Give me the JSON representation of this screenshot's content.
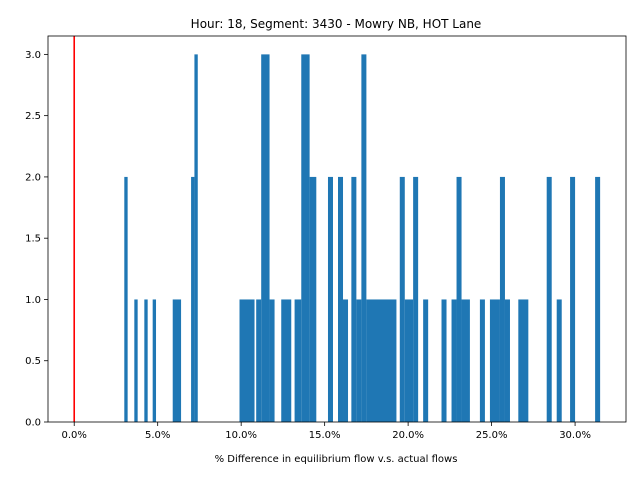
{
  "chart_data": {
    "type": "bar",
    "title": "Hour: 18, Segment: 3430 - Mowry NB, HOT Lane",
    "xlabel": "% Difference in equilibrium flow v.s. actual flows",
    "ylabel": "",
    "xlim": [
      -0.0157,
      0.3305
    ],
    "ylim": [
      0,
      3.15
    ],
    "x_ticks": [
      0.0,
      0.05,
      0.1,
      0.15,
      0.2,
      0.25,
      0.3
    ],
    "x_tick_labels": [
      "0.0%",
      "5.0%",
      "10.0%",
      "15.0%",
      "20.0%",
      "25.0%",
      "30.0%"
    ],
    "y_ticks": [
      0.0,
      0.5,
      1.0,
      1.5,
      2.0,
      2.5,
      3.0
    ],
    "y_tick_labels": [
      "0.0",
      "0.5",
      "1.0",
      "1.5",
      "2.0",
      "2.5",
      "3.0"
    ],
    "bar_color": "#1f77b4",
    "reference_line": {
      "x": 0.0,
      "color": "#ff0000"
    },
    "bins": [
      {
        "x0": 0.03,
        "x1": 0.032,
        "count": 2
      },
      {
        "x0": 0.036,
        "x1": 0.038,
        "count": 1
      },
      {
        "x0": 0.042,
        "x1": 0.044,
        "count": 1
      },
      {
        "x0": 0.047,
        "x1": 0.049,
        "count": 1
      },
      {
        "x0": 0.059,
        "x1": 0.064,
        "count": 1
      },
      {
        "x0": 0.07,
        "x1": 0.072,
        "count": 2
      },
      {
        "x0": 0.072,
        "x1": 0.074,
        "count": 3
      },
      {
        "x0": 0.099,
        "x1": 0.108,
        "count": 1
      },
      {
        "x0": 0.109,
        "x1": 0.112,
        "count": 1
      },
      {
        "x0": 0.112,
        "x1": 0.117,
        "count": 3
      },
      {
        "x0": 0.117,
        "x1": 0.12,
        "count": 1
      },
      {
        "x0": 0.124,
        "x1": 0.13,
        "count": 1
      },
      {
        "x0": 0.132,
        "x1": 0.136,
        "count": 1
      },
      {
        "x0": 0.136,
        "x1": 0.141,
        "count": 3
      },
      {
        "x0": 0.141,
        "x1": 0.145,
        "count": 2
      },
      {
        "x0": 0.152,
        "x1": 0.155,
        "count": 2
      },
      {
        "x0": 0.158,
        "x1": 0.161,
        "count": 2
      },
      {
        "x0": 0.161,
        "x1": 0.164,
        "count": 1
      },
      {
        "x0": 0.166,
        "x1": 0.169,
        "count": 2
      },
      {
        "x0": 0.169,
        "x1": 0.172,
        "count": 1
      },
      {
        "x0": 0.172,
        "x1": 0.175,
        "count": 3
      },
      {
        "x0": 0.175,
        "x1": 0.193,
        "count": 1
      },
      {
        "x0": 0.195,
        "x1": 0.198,
        "count": 2
      },
      {
        "x0": 0.198,
        "x1": 0.203,
        "count": 1
      },
      {
        "x0": 0.203,
        "x1": 0.206,
        "count": 2
      },
      {
        "x0": 0.209,
        "x1": 0.212,
        "count": 1
      },
      {
        "x0": 0.22,
        "x1": 0.223,
        "count": 1
      },
      {
        "x0": 0.226,
        "x1": 0.229,
        "count": 1
      },
      {
        "x0": 0.229,
        "x1": 0.232,
        "count": 2
      },
      {
        "x0": 0.232,
        "x1": 0.237,
        "count": 1
      },
      {
        "x0": 0.243,
        "x1": 0.246,
        "count": 1
      },
      {
        "x0": 0.249,
        "x1": 0.255,
        "count": 1
      },
      {
        "x0": 0.255,
        "x1": 0.258,
        "count": 2
      },
      {
        "x0": 0.258,
        "x1": 0.261,
        "count": 1
      },
      {
        "x0": 0.266,
        "x1": 0.272,
        "count": 1
      },
      {
        "x0": 0.283,
        "x1": 0.286,
        "count": 2
      },
      {
        "x0": 0.289,
        "x1": 0.292,
        "count": 1
      },
      {
        "x0": 0.297,
        "x1": 0.3,
        "count": 2
      },
      {
        "x0": 0.312,
        "x1": 0.315,
        "count": 2
      }
    ]
  }
}
